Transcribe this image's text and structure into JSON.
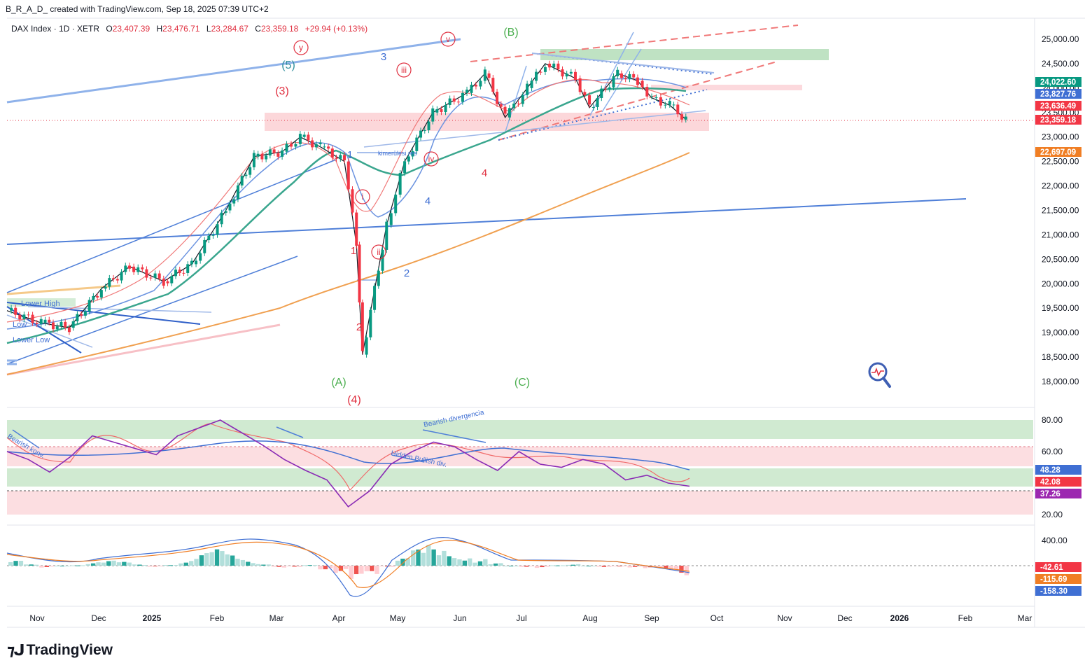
{
  "header": {
    "attribution": "B_R_A_D_ created with TradingView.com, Sep 18, 2025 07:39 UTC+2"
  },
  "legend": {
    "symbol": "DAX Index · 1D · XETR",
    "o_label": "O",
    "o_value": "23,407.39",
    "h_label": "H",
    "h_value": "23,476.71",
    "l_label": "L",
    "l_value": "23,284.67",
    "c_label": "C",
    "c_value": "23,359.18",
    "change": "+29.94 (+0.13%)"
  },
  "colors": {
    "up": "#089981",
    "down": "#f23645",
    "ma_fast": "#f06a6a",
    "ma_mid": "#6b93e0",
    "ma_slow": "#3aa68e",
    "ma_200": "#f0a050",
    "trend_blue": "#3f6fd3",
    "green_zone": "#b8dfbd",
    "red_zone": "#fbd0d4"
  },
  "footer": {
    "brand": "TradingView"
  },
  "chart_data": [
    {
      "type": "line",
      "title": "",
      "ylim": [
        17500,
        25250
      ],
      "y_ticks": [
        "25,000.00",
        "24,500.00",
        "24,000.00",
        "23,500.00",
        "23,000.00",
        "22,500.00",
        "22,000.00",
        "21,500.00",
        "21,000.00",
        "20,500.00",
        "20,000.00",
        "19,500.00",
        "19,000.00",
        "18,500.00",
        "18,000.00"
      ],
      "y_tick_values": [
        25000,
        24500,
        24000,
        23500,
        23000,
        22500,
        22000,
        21500,
        21000,
        20500,
        20000,
        19500,
        19000,
        18500,
        18000
      ],
      "x_labels": [
        "Nov",
        "Dec",
        "2025",
        "Feb",
        "Mar",
        "Apr",
        "May",
        "Jun",
        "Jul",
        "Aug",
        "Sep",
        "Oct",
        "Nov",
        "Dec",
        "2026",
        "Feb",
        "Mar"
      ],
      "series": [
        {
          "name": "",
          "dates": [
            "2024-10-15",
            "2024-11-01",
            "2024-11-15",
            "2024-12-01",
            "2024-12-15",
            "2025-01-01",
            "2025-01-15",
            "2025-02-01",
            "2025-02-15",
            "2025-03-01",
            "2025-03-10",
            "2025-03-20",
            "2025-04-01",
            "2025-04-07",
            "2025-04-10",
            "2025-04-22",
            "2025-05-01",
            "2025-05-15",
            "2025-06-01",
            "2025-06-10",
            "2025-06-20",
            "2025-07-01",
            "2025-07-10",
            "2025-07-25",
            "2025-08-01",
            "2025-08-15",
            "2025-08-25",
            "2025-09-01",
            "2025-09-10",
            "2025-09-18"
          ],
          "values": [
            19450,
            19200,
            19100,
            19900,
            20350,
            20050,
            20400,
            21500,
            22600,
            22700,
            23000,
            22800,
            22500,
            20800,
            18550,
            21200,
            22500,
            23500,
            23900,
            24300,
            23400,
            24000,
            24500,
            24200,
            23600,
            24300,
            24150,
            23800,
            23650,
            23359
          ]
        }
      ],
      "price_labels": [
        {
          "text": "24,022.60",
          "value": 24022.6,
          "color": "#089981"
        },
        {
          "text": "23,827.76",
          "value": 23827.76,
          "color": "#3f6fd3"
        },
        {
          "text": "23,636.49",
          "value": 23636.49,
          "color": "#f23645"
        },
        {
          "text": "23,359.18",
          "value": 23359.18,
          "color": "#f23645"
        },
        {
          "text": "22,697.09",
          "value": 22697.09,
          "color": "#f07e24"
        }
      ],
      "annotations": [
        {
          "text": "(5)",
          "color": "#2f8f9d"
        },
        {
          "text": "(3)",
          "color": "#e03040"
        },
        {
          "text": "y",
          "color": "#e03040"
        },
        {
          "text": "3",
          "color": "#3f6fd3"
        },
        {
          "text": "v",
          "color": "#e03040"
        },
        {
          "text": "(B)",
          "color": "#4caf50"
        },
        {
          "text": "iii",
          "color": "#e03040"
        },
        {
          "text": "1",
          "color": "#3f6fd3"
        },
        {
          "text": "kimerülési res",
          "color": "#3f6fd3"
        },
        {
          "text": "iv",
          "color": "#e03040"
        },
        {
          "text": "4",
          "color": "#e03040"
        },
        {
          "text": "i",
          "color": "#e03040"
        },
        {
          "text": "4",
          "color": "#3f6fd3"
        },
        {
          "text": "1",
          "color": "#e03040"
        },
        {
          "text": "ii",
          "color": "#e03040"
        },
        {
          "text": "2",
          "color": "#3f6fd3"
        },
        {
          "text": "2",
          "color": "#e03040"
        },
        {
          "text": "(A)",
          "color": "#4caf50"
        },
        {
          "text": "(4)",
          "color": "#e03040"
        },
        {
          "text": "(C)",
          "color": "#4caf50"
        },
        {
          "text": "Lower High",
          "color": "#3f6fd3"
        },
        {
          "text": "Low",
          "color": "#3f6fd3"
        },
        {
          "text": "Lower Low",
          "color": "#3f6fd3"
        }
      ]
    },
    {
      "type": "line",
      "title": "",
      "ylim": [
        15,
        85
      ],
      "y_ticks": [
        "80.00",
        "60.00",
        "20.00"
      ],
      "y_tick_values": [
        80,
        60,
        20
      ],
      "series": [
        {
          "name": "",
          "values": [
            60,
            55,
            47,
            57,
            70,
            66,
            62,
            58,
            70,
            75,
            80,
            72,
            64,
            55,
            48,
            42,
            25,
            35,
            52,
            60,
            66,
            63,
            55,
            48,
            60,
            52,
            50,
            55,
            52,
            42,
            45,
            40,
            38
          ]
        }
      ],
      "price_labels": [
        {
          "text": "48.28",
          "value": 48.28,
          "color": "#3f6fd3"
        },
        {
          "text": "42.08",
          "value": 42.08,
          "color": "#f23645"
        },
        {
          "text": "37.26",
          "value": 37.26,
          "color": "#9c27b0"
        }
      ],
      "annotations": [
        {
          "text": "Bearish divergencia",
          "color": "#3f6fd3"
        },
        {
          "text": "Hidden Bullish div.",
          "color": "#3f6fd3"
        },
        {
          "text": "Bearish konv.",
          "color": "#3f6fd3"
        }
      ]
    },
    {
      "type": "bar",
      "title": "",
      "ylim": [
        -350,
        500
      ],
      "y_ticks": [
        "400.00"
      ],
      "y_tick_values": [
        400
      ],
      "series": [
        {
          "name": "",
          "values": [
            80,
            20,
            -30,
            0,
            10,
            60,
            80,
            60,
            20,
            -20,
            20,
            90,
            200,
            260,
            180,
            100,
            40,
            -40,
            -20,
            10,
            -60,
            -120,
            -300,
            -200,
            -20,
            120,
            260,
            330,
            300,
            200,
            120,
            40,
            0,
            -20,
            -40,
            10,
            30,
            0,
            -20,
            -10,
            -30,
            -60,
            -100,
            -158
          ]
        }
      ],
      "price_labels": [
        {
          "text": "-42.61",
          "value": -42.61,
          "color": "#f23645"
        },
        {
          "text": "-115.69",
          "value": -115.69,
          "color": "#f07e24"
        },
        {
          "text": "-158.30",
          "value": -158.3,
          "color": "#3f6fd3"
        }
      ]
    }
  ]
}
